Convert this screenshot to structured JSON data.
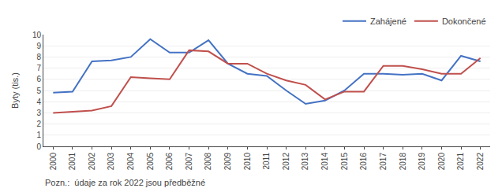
{
  "chart_data": {
    "type": "line",
    "x": [
      2000,
      2001,
      2002,
      2003,
      2004,
      2005,
      2006,
      2007,
      2008,
      2009,
      2010,
      2011,
      2012,
      2013,
      2014,
      2015,
      2016,
      2017,
      2018,
      2019,
      2020,
      2021,
      2022
    ],
    "series": [
      {
        "name": "Zahájené",
        "color": "#4472C4",
        "values": [
          4.8,
          4.9,
          7.6,
          7.7,
          8.0,
          9.6,
          8.4,
          8.4,
          9.5,
          7.4,
          6.5,
          6.3,
          5.0,
          3.8,
          4.1,
          5.0,
          6.5,
          6.5,
          6.4,
          6.5,
          5.9,
          8.1,
          7.6
        ]
      },
      {
        "name": "Dokončené",
        "color": "#C0504D",
        "values": [
          3.0,
          3.1,
          3.2,
          3.6,
          6.2,
          6.1,
          6.0,
          8.6,
          8.5,
          7.4,
          7.4,
          6.5,
          5.9,
          5.5,
          4.2,
          4.9,
          4.9,
          7.2,
          7.2,
          6.9,
          6.5,
          6.5,
          7.9
        ]
      }
    ],
    "ylabel": "Byty (tis.)",
    "xlim": [
      1999.5,
      2022.5
    ],
    "xticks": [
      2000,
      2001,
      2002,
      2003,
      2004,
      2005,
      2006,
      2007,
      2008,
      2009,
      2010,
      2011,
      2012,
      2013,
      2014,
      2015,
      2016,
      2017,
      2018,
      2019,
      2020,
      2021,
      2022
    ],
    "ylim": [
      0,
      10
    ],
    "yticks": [
      0,
      1,
      2,
      3,
      4,
      5,
      6,
      7,
      8,
      9,
      10
    ],
    "grid": true,
    "legend": "upper right",
    "annotations": [
      "Pozn.:  údaje za rok 2022 jsou předběžné"
    ]
  }
}
